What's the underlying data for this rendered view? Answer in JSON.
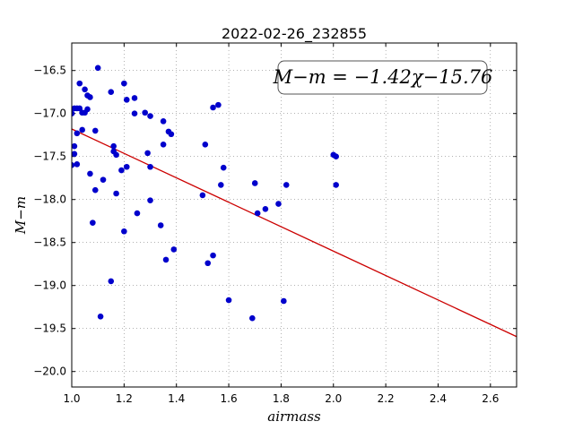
{
  "chart_data": {
    "type": "scatter",
    "title": "2022-02-26_232855",
    "xlabel": "airmass",
    "ylabel": "M−m",
    "xlim": [
      1.0,
      2.7
    ],
    "ylim": [
      -20.18,
      -16.18
    ],
    "y_inverted": true,
    "grid": true,
    "x_ticks": [
      1.0,
      1.2,
      1.4,
      1.6,
      1.8,
      2.0,
      2.2,
      2.4,
      2.6
    ],
    "x_tick_labels": [
      "1.0",
      "1.2",
      "1.4",
      "1.6",
      "1.8",
      "2.0",
      "2.2",
      "2.4",
      "2.6"
    ],
    "y_ticks": [
      -16.5,
      -17.0,
      -17.5,
      -18.0,
      -18.5,
      -19.0,
      -19.5,
      -20.0
    ],
    "y_tick_labels": [
      "−16.5",
      "−17.0",
      "−17.5",
      "−18.0",
      "−18.5",
      "−19.0",
      "−19.5",
      "−20.0"
    ],
    "annotation": "M−m = −1.42χ−15.76",
    "fit": {
      "slope": -1.42,
      "intercept": -15.76,
      "color": "#cc0000"
    },
    "marker_color": "#0000cc",
    "points": [
      [
        1.0,
        -17.0
      ],
      [
        1.0,
        -17.6
      ],
      [
        1.01,
        -17.47
      ],
      [
        1.01,
        -17.38
      ],
      [
        1.01,
        -16.94
      ],
      [
        1.02,
        -16.94
      ],
      [
        1.03,
        -16.94
      ],
      [
        1.02,
        -17.23
      ],
      [
        1.02,
        -17.59
      ],
      [
        1.03,
        -16.65
      ],
      [
        1.04,
        -16.99
      ],
      [
        1.04,
        -17.19
      ],
      [
        1.05,
        -16.99
      ],
      [
        1.05,
        -16.72
      ],
      [
        1.06,
        -16.95
      ],
      [
        1.06,
        -16.79
      ],
      [
        1.07,
        -16.81
      ],
      [
        1.07,
        -17.7
      ],
      [
        1.08,
        -18.27
      ],
      [
        1.09,
        -17.2
      ],
      [
        1.09,
        -17.89
      ],
      [
        1.1,
        -16.47
      ],
      [
        1.11,
        -19.36
      ],
      [
        1.12,
        -17.77
      ],
      [
        1.15,
        -16.75
      ],
      [
        1.15,
        -18.95
      ],
      [
        1.16,
        -17.44
      ],
      [
        1.16,
        -17.38
      ],
      [
        1.17,
        -17.48
      ],
      [
        1.17,
        -17.93
      ],
      [
        1.19,
        -17.66
      ],
      [
        1.2,
        -16.65
      ],
      [
        1.2,
        -18.37
      ],
      [
        1.21,
        -16.84
      ],
      [
        1.21,
        -17.62
      ],
      [
        1.24,
        -16.82
      ],
      [
        1.24,
        -17.0
      ],
      [
        1.25,
        -18.16
      ],
      [
        1.28,
        -16.99
      ],
      [
        1.29,
        -17.46
      ],
      [
        1.3,
        -17.62
      ],
      [
        1.3,
        -18.01
      ],
      [
        1.3,
        -17.03
      ],
      [
        1.34,
        -18.3
      ],
      [
        1.35,
        -17.09
      ],
      [
        1.35,
        -17.36
      ],
      [
        1.36,
        -18.7
      ],
      [
        1.37,
        -17.21
      ],
      [
        1.38,
        -17.24
      ],
      [
        1.39,
        -18.58
      ],
      [
        1.5,
        -17.95
      ],
      [
        1.51,
        -17.36
      ],
      [
        1.52,
        -18.74
      ],
      [
        1.54,
        -18.65
      ],
      [
        1.54,
        -16.93
      ],
      [
        1.56,
        -16.9
      ],
      [
        1.57,
        -17.83
      ],
      [
        1.58,
        -17.63
      ],
      [
        1.6,
        -19.17
      ],
      [
        1.69,
        -19.38
      ],
      [
        1.7,
        -17.81
      ],
      [
        1.71,
        -18.16
      ],
      [
        1.74,
        -18.11
      ],
      [
        1.79,
        -18.05
      ],
      [
        1.81,
        -19.18
      ],
      [
        1.82,
        -17.83
      ],
      [
        2.0,
        -17.48
      ],
      [
        2.01,
        -17.5
      ],
      [
        2.01,
        -17.83
      ]
    ]
  }
}
